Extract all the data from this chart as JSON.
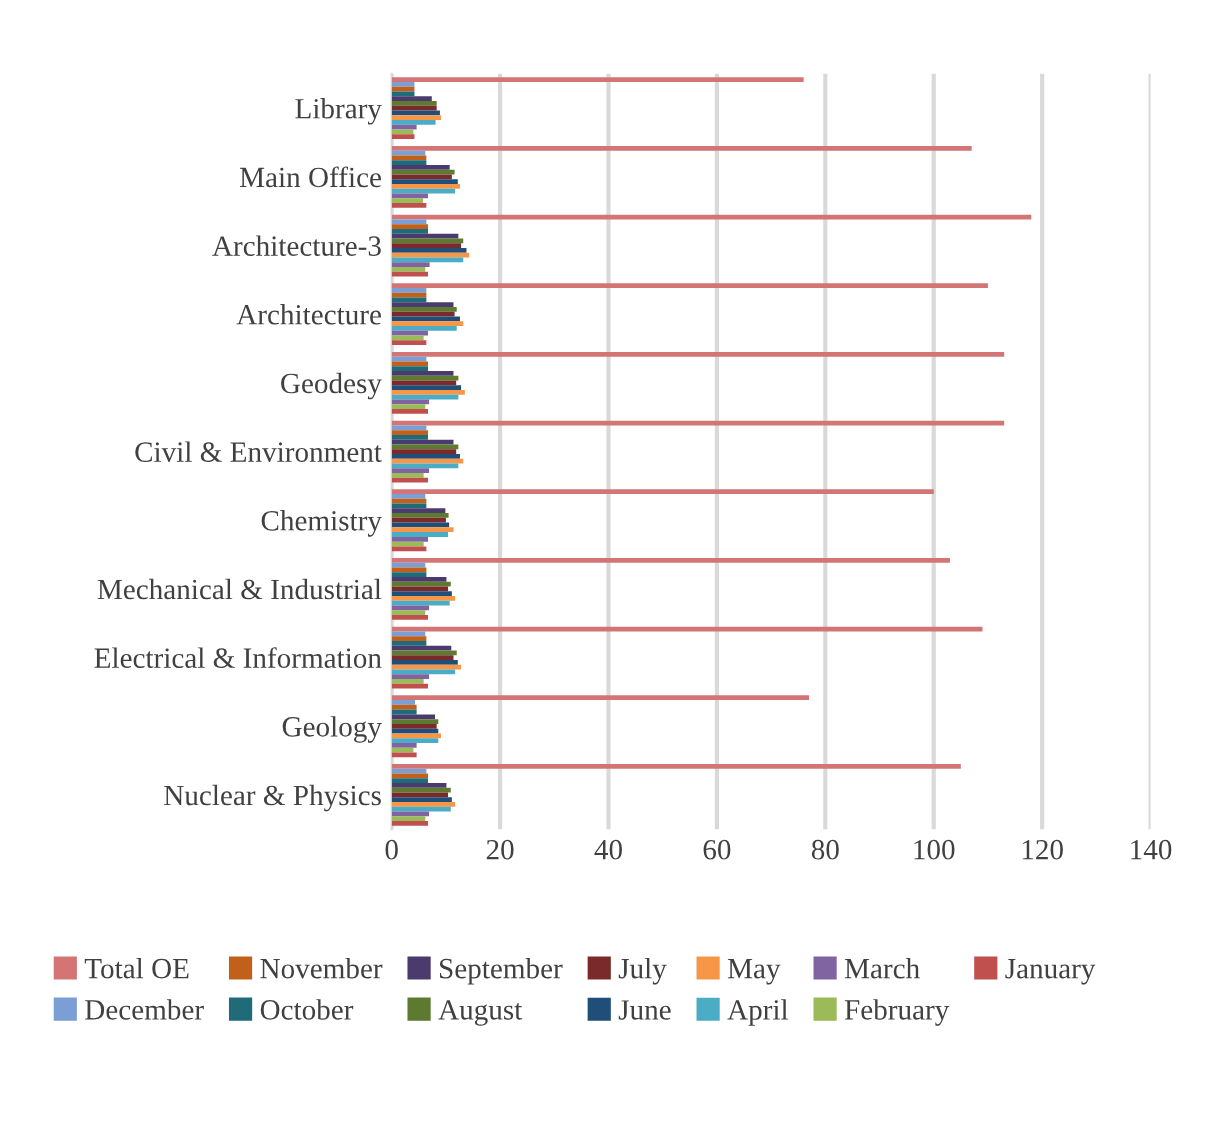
{
  "chart_data": {
    "type": "bar",
    "orientation": "horizontal",
    "categories": [
      "Library",
      "Main Office",
      "Architecture-3",
      "Architecture",
      "Geodesy",
      "Civil & Environment",
      "Chemistry",
      "Mechanical & Industrial",
      "Electrical & Information",
      "Geology",
      "Nuclear & Physics"
    ],
    "series": [
      {
        "name": "Total OE",
        "color": "#d37475",
        "values": [
          76,
          107,
          118,
          110,
          113,
          113,
          100,
          103,
          109,
          77,
          105
        ]
      },
      {
        "name": "December",
        "color": "#7b9fd4",
        "values": [
          4.2,
          6.2,
          6.4,
          6.4,
          6.4,
          6.4,
          6.2,
          6.2,
          6.2,
          4.3,
          6.4
        ]
      },
      {
        "name": "November",
        "color": "#c0601a",
        "values": [
          4.2,
          6.4,
          6.7,
          6.4,
          6.7,
          6.7,
          6.4,
          6.4,
          6.4,
          4.6,
          6.7
        ]
      },
      {
        "name": "October",
        "color": "#1f6b7a",
        "values": [
          4.2,
          6.4,
          6.7,
          6.4,
          6.7,
          6.7,
          6.4,
          6.4,
          6.4,
          4.6,
          6.7
        ]
      },
      {
        "name": "September",
        "color": "#4b3a6e",
        "values": [
          7.4,
          10.7,
          12.3,
          11.4,
          11.4,
          11.4,
          9.9,
          10.1,
          11.0,
          8.0,
          10.1
        ]
      },
      {
        "name": "August",
        "color": "#5e7a30",
        "values": [
          8.3,
          11.6,
          13.2,
          12.0,
          12.3,
          12.3,
          10.5,
          10.9,
          12.0,
          8.6,
          10.9
        ]
      },
      {
        "name": "July",
        "color": "#7a2a2a",
        "values": [
          8.3,
          11.1,
          12.8,
          11.6,
          11.9,
          11.9,
          10.0,
          10.4,
          11.4,
          8.3,
          10.4
        ]
      },
      {
        "name": "June",
        "color": "#1f4e79",
        "values": [
          8.9,
          12.2,
          13.8,
          12.6,
          12.8,
          12.6,
          10.6,
          11.1,
          12.2,
          8.6,
          11.1
        ]
      },
      {
        "name": "May",
        "color": "#f79646",
        "values": [
          9.1,
          12.6,
          14.3,
          13.2,
          13.5,
          13.2,
          11.4,
          11.7,
          12.8,
          9.1,
          11.7
        ]
      },
      {
        "name": "April",
        "color": "#4bacc6",
        "values": [
          8.1,
          11.7,
          13.2,
          12.0,
          12.3,
          12.3,
          10.4,
          10.7,
          11.7,
          8.6,
          10.9
        ]
      },
      {
        "name": "March",
        "color": "#8064a2",
        "values": [
          4.6,
          6.7,
          7.0,
          6.7,
          6.9,
          6.9,
          6.7,
          6.9,
          6.9,
          4.6,
          6.9
        ]
      },
      {
        "name": "February",
        "color": "#9bbb59",
        "values": [
          4.0,
          5.8,
          6.2,
          5.9,
          6.2,
          5.9,
          5.9,
          6.2,
          5.9,
          4.0,
          6.2
        ]
      },
      {
        "name": "January",
        "color": "#c0504d",
        "values": [
          4.2,
          6.4,
          6.7,
          6.4,
          6.7,
          6.7,
          6.4,
          6.7,
          6.7,
          4.6,
          6.7
        ]
      }
    ],
    "xlim": [
      0,
      140
    ],
    "xticks": [
      0,
      20,
      40,
      60,
      80,
      100,
      120,
      140
    ],
    "grid": "x",
    "legend": "bottom"
  }
}
